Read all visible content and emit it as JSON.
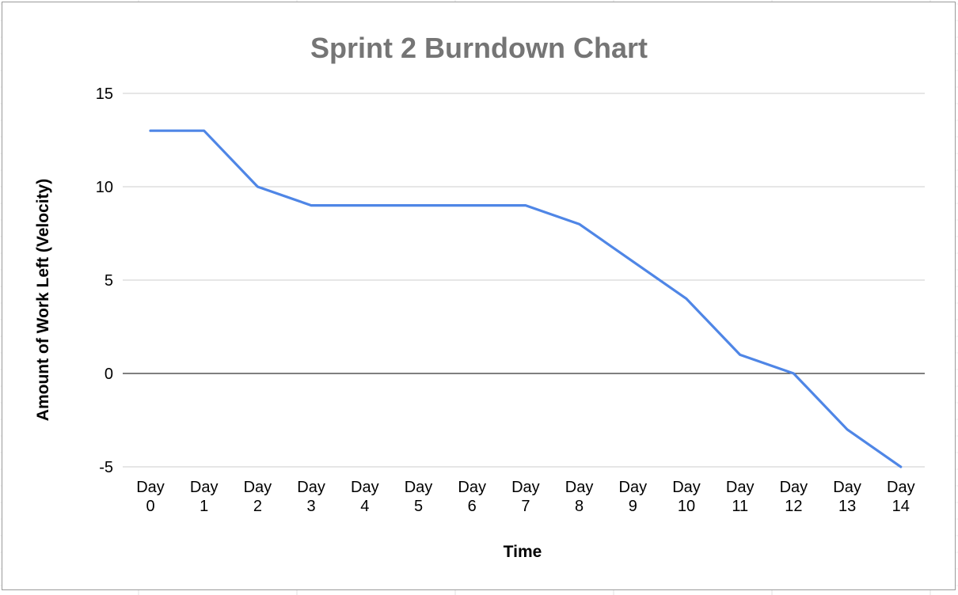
{
  "chart_data": {
    "type": "line",
    "title": "Sprint 2 Burndown Chart",
    "xlabel": "Time",
    "ylabel": "Amount of Work Left (Velocity)",
    "categories": [
      {
        "line1": "Day",
        "line2": "0"
      },
      {
        "line1": "Day",
        "line2": "1"
      },
      {
        "line1": "Day",
        "line2": "2"
      },
      {
        "line1": "Day",
        "line2": "3"
      },
      {
        "line1": "Day",
        "line2": "4"
      },
      {
        "line1": "Day",
        "line2": "5"
      },
      {
        "line1": "Day",
        "line2": "6"
      },
      {
        "line1": "Day",
        "line2": "7"
      },
      {
        "line1": "Day",
        "line2": "8"
      },
      {
        "line1": "Day",
        "line2": "9"
      },
      {
        "line1": "Day",
        "line2": "10"
      },
      {
        "line1": "Day",
        "line2": "11"
      },
      {
        "line1": "Day",
        "line2": "12"
      },
      {
        "line1": "Day",
        "line2": "13"
      },
      {
        "line1": "Day",
        "line2": "14"
      }
    ],
    "series": [
      {
        "values": [
          13,
          13,
          10,
          9,
          9,
          9,
          9,
          9,
          8,
          6,
          4,
          1,
          0,
          -3,
          -5
        ],
        "color": "#4f86e6"
      }
    ],
    "ylim": [
      -5,
      15
    ],
    "yticks": [
      "15",
      "10",
      "5",
      "0",
      "-5"
    ],
    "grid": true,
    "legend": "none"
  }
}
